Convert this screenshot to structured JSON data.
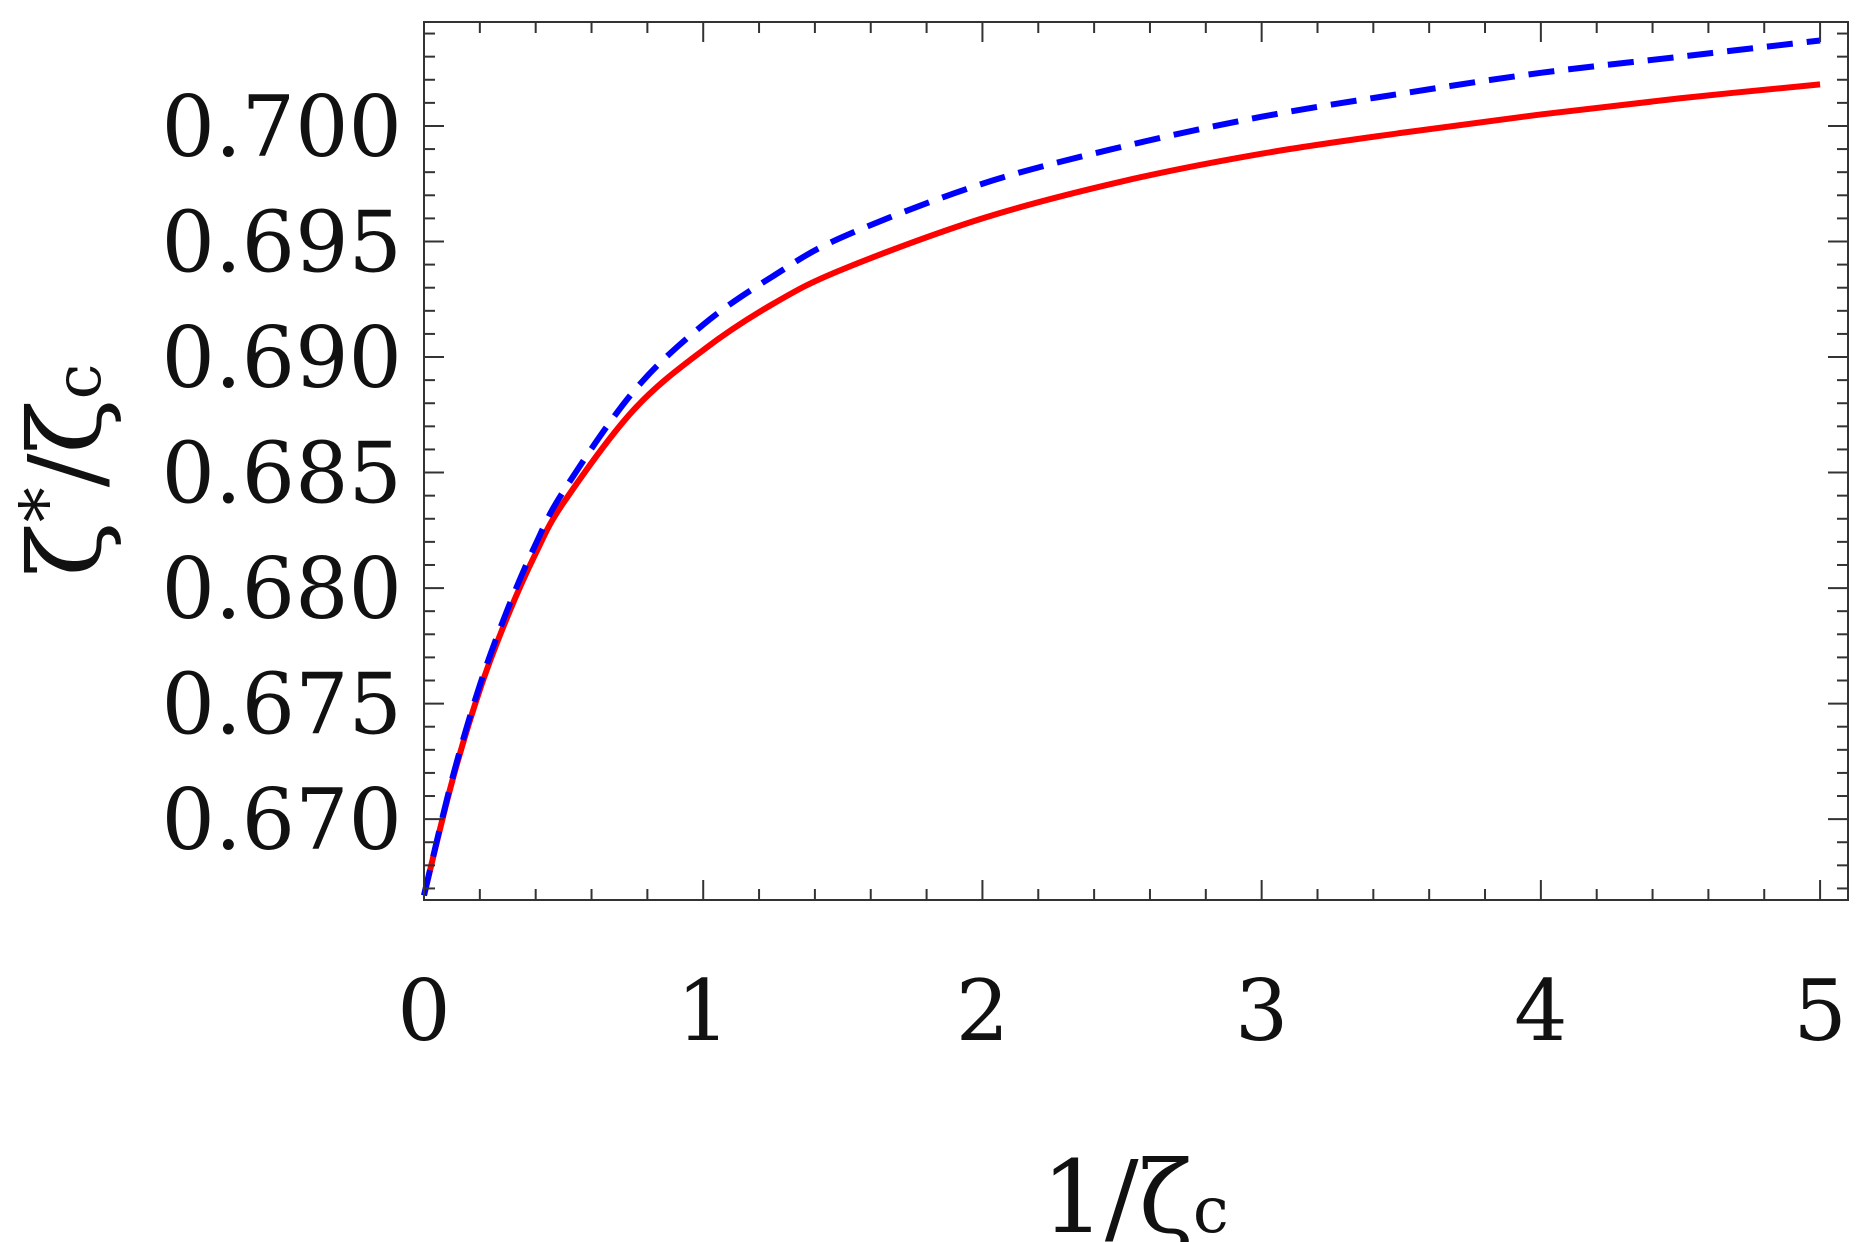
{
  "chart_data": {
    "type": "line",
    "xlabel": "1/ζc",
    "ylabel": "ζ*/ζc",
    "xlim": [
      0,
      5.1
    ],
    "ylim": [
      0.6665,
      0.7045
    ],
    "xticks": [
      0,
      1,
      2,
      3,
      4,
      5
    ],
    "xtick_labels": [
      "0",
      "1",
      "2",
      "3",
      "4",
      "5"
    ],
    "yticks": [
      0.67,
      0.675,
      0.68,
      0.685,
      0.69,
      0.695,
      0.7
    ],
    "ytick_labels": [
      "0.670",
      "0.675",
      "0.680",
      "0.685",
      "0.690",
      "0.695",
      "0.700"
    ],
    "grid": false,
    "series": [
      {
        "color": "#ff0000",
        "style": "solid",
        "x": [
          0,
          0.1,
          0.2,
          0.3,
          0.4,
          0.5,
          0.75,
          1.0,
          1.25,
          1.5,
          2.0,
          2.5,
          3.0,
          3.5,
          4.0,
          4.5,
          5.0
        ],
        "y": [
          0.6667,
          0.6716,
          0.6756,
          0.6788,
          0.6815,
          0.6837,
          0.6877,
          0.6903,
          0.6923,
          0.6938,
          0.696,
          0.6976,
          0.6988,
          0.6997,
          0.7005,
          0.7012,
          0.7018
        ]
      },
      {
        "color": "#0000ff",
        "style": "dashed",
        "x": [
          0,
          0.1,
          0.2,
          0.3,
          0.4,
          0.5,
          0.75,
          1.0,
          1.25,
          1.5,
          2.0,
          2.5,
          3.0,
          3.5,
          4.0,
          4.5,
          5.0
        ],
        "y": [
          0.6667,
          0.6717,
          0.6758,
          0.6791,
          0.6819,
          0.6842,
          0.6885,
          0.6914,
          0.6935,
          0.6952,
          0.6975,
          0.6991,
          0.7004,
          0.7014,
          0.7023,
          0.703,
          0.7037
        ]
      }
    ]
  }
}
